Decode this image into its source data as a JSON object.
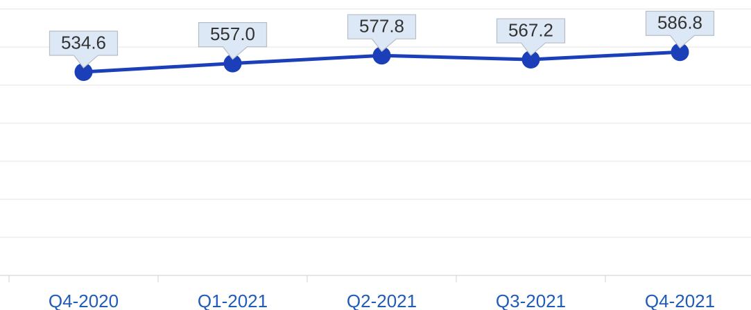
{
  "chart_data": {
    "type": "line",
    "categories": [
      "Q4-2020",
      "Q1-2021",
      "Q2-2021",
      "Q3-2021",
      "Q4-2021"
    ],
    "series": [
      {
        "name": null,
        "color": "#1b3fb8",
        "values": [
          534.6,
          557.0,
          577.8,
          567.2,
          586.8
        ],
        "value_labels": [
          "534.6",
          "557.0",
          "577.8",
          "567.2",
          "586.8"
        ]
      }
    ],
    "ylim": [
      0,
      720
    ],
    "yticks": [
      0,
      100,
      200,
      300,
      400,
      500,
      600,
      700
    ],
    "grid": true
  }
}
